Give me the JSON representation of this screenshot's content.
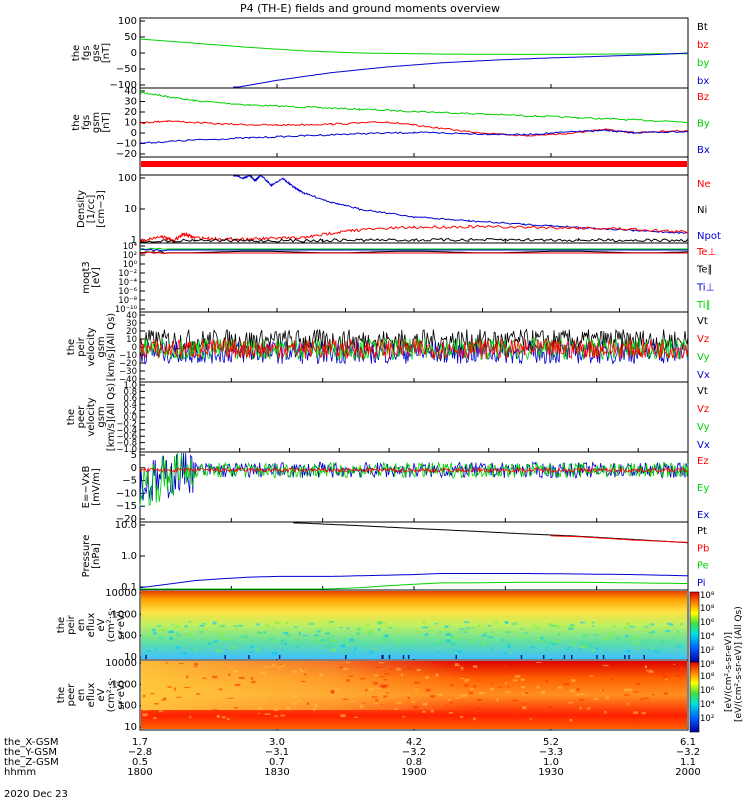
{
  "title": "P4 (TH-E) fields and ground moments overview",
  "colors": {
    "black": "#000000",
    "red": "#ff0000",
    "green": "#00d000",
    "blue": "#0000d0"
  },
  "chart_data": [
    {
      "type": "line",
      "id": "fgs_gse",
      "ylabel": [
        "the",
        "fgs",
        "gse",
        "[nT]"
      ],
      "yticks": [
        "100",
        "50",
        "0",
        "−50",
        "−100"
      ],
      "ylim": [
        -100,
        100
      ],
      "legend": [
        {
          "name": "Bt",
          "color": "black"
        },
        {
          "name": "bz",
          "color": "red"
        },
        {
          "name": "by",
          "color": "green"
        },
        {
          "name": "bx",
          "color": "blue"
        }
      ],
      "series": [
        {
          "name": "by",
          "color": "green",
          "x": [
            0,
            0.1,
            0.2,
            0.3,
            0.4,
            0.55,
            0.7,
            0.85,
            1
          ],
          "y": [
            40,
            28,
            16,
            6,
            0,
            -3,
            -4,
            -3,
            -2
          ]
        },
        {
          "name": "bx",
          "color": "blue",
          "x": [
            0.17,
            0.25,
            0.35,
            0.45,
            0.55,
            0.65,
            0.75,
            0.85,
            0.95,
            1
          ],
          "y": [
            -100,
            -78,
            -56,
            -40,
            -28,
            -20,
            -14,
            -9,
            -4,
            0
          ]
        }
      ]
    },
    {
      "type": "line",
      "id": "fgs_gsm",
      "ylabel": [
        "the",
        "fgs",
        "gsm",
        "[nT]"
      ],
      "yticks": [
        "40",
        "30",
        "20",
        "10",
        "0",
        "−10",
        "−20"
      ],
      "ylim": [
        -25,
        40
      ],
      "legend": [
        {
          "name": "Bz",
          "color": "red"
        },
        {
          "name": "By",
          "color": "green"
        },
        {
          "name": "Bx",
          "color": "blue"
        }
      ],
      "series": [
        {
          "name": "By",
          "color": "green",
          "x": [
            0,
            0.05,
            0.1,
            0.2,
            0.3,
            0.4,
            0.5,
            0.6,
            0.7,
            0.8,
            0.9,
            1
          ],
          "y": [
            36,
            32,
            28,
            24,
            22,
            20,
            18,
            16,
            14,
            12,
            10,
            8
          ]
        },
        {
          "name": "Bz",
          "color": "red",
          "x": [
            0,
            0.05,
            0.15,
            0.25,
            0.35,
            0.45,
            0.5,
            0.6,
            0.7,
            0.78,
            0.85,
            0.9,
            1
          ],
          "y": [
            7,
            9,
            6,
            5,
            6,
            8,
            5,
            -1,
            -5,
            -3,
            1,
            -2,
            0
          ]
        },
        {
          "name": "Bx",
          "color": "blue",
          "x": [
            0,
            0.1,
            0.2,
            0.3,
            0.4,
            0.5,
            0.6,
            0.7,
            0.8,
            0.85,
            0.9,
            1
          ],
          "y": [
            -12,
            -9,
            -7,
            -5,
            -3,
            -2,
            -3,
            -4,
            -1,
            0,
            -2,
            -1
          ]
        }
      ]
    },
    {
      "type": "log-line",
      "id": "density",
      "ylabel": [
        "Density",
        "[1/cc]",
        "[cm−3]"
      ],
      "yticks": [
        "100",
        "10",
        "1"
      ],
      "ylog": [
        0.5,
        200
      ],
      "legend": [
        {
          "name": "Ne",
          "color": "red"
        },
        {
          "name": "Ni",
          "color": "black"
        },
        {
          "name": "Npot",
          "color": "blue"
        }
      ],
      "series": [
        {
          "name": "Npot",
          "color": "blue",
          "x": [
            0.17,
            0.19,
            0.2,
            0.21,
            0.22,
            0.24,
            0.26,
            0.28,
            0.3,
            0.35,
            0.4,
            0.5,
            0.6,
            0.7,
            0.8,
            0.9,
            1
          ],
          "y": [
            200,
            150,
            200,
            120,
            200,
            80,
            150,
            70,
            40,
            18,
            10,
            5,
            3.5,
            2.6,
            2.0,
            1.5,
            1.2
          ]
        },
        {
          "name": "Ne",
          "color": "red",
          "x": [
            0,
            0.04,
            0.06,
            0.08,
            0.1,
            0.15,
            0.2,
            0.25,
            0.3,
            0.35,
            0.4,
            0.5,
            0.6,
            0.7,
            0.8,
            0.9,
            1
          ],
          "y": [
            0.6,
            0.9,
            0.6,
            1.1,
            0.8,
            0.7,
            0.7,
            0.75,
            0.8,
            1.2,
            1.6,
            2.0,
            2.1,
            2.0,
            1.9,
            1.7,
            1.3
          ]
        },
        {
          "name": "Ni",
          "color": "black",
          "x": [
            0,
            0.1,
            0.2,
            0.3,
            0.4,
            0.5,
            0.6,
            0.7,
            0.8,
            0.9,
            1
          ],
          "y": [
            0.55,
            0.65,
            0.6,
            0.62,
            0.65,
            0.65,
            0.66,
            0.66,
            0.65,
            0.64,
            0.62
          ]
        }
      ]
    },
    {
      "type": "log-line",
      "id": "temp",
      "ylabel": [
        "moqt3",
        "[eV]"
      ],
      "yticks": [
        "10⁴",
        "10²",
        "10⁰",
        "10⁻²",
        "10⁻⁴",
        "10⁻⁶",
        "10⁻⁸",
        "10⁻¹⁰"
      ],
      "legend": [
        {
          "name": "Te⊥",
          "color": "red"
        },
        {
          "name": "Te∥",
          "color": "black"
        },
        {
          "name": "Ti⊥",
          "color": "blue"
        },
        {
          "name": "Ti∥",
          "color": "green"
        }
      ],
      "series": []
    },
    {
      "type": "noise",
      "id": "peir_vel",
      "ylabel": [
        "the",
        "peir",
        "velocity",
        "gsm",
        "[km/s](All Qs)"
      ],
      "yticks": [
        "40",
        "30",
        "20",
        "10",
        "0",
        "−10",
        "−20",
        "−30",
        "−40"
      ],
      "ylim": [
        -40,
        45
      ],
      "legend": [
        {
          "name": "Vt",
          "color": "black"
        },
        {
          "name": "Vz",
          "color": "red"
        },
        {
          "name": "Vy",
          "color": "green"
        },
        {
          "name": "Vx",
          "color": "blue"
        }
      ],
      "series": []
    },
    {
      "type": "empty",
      "id": "peer_vel",
      "ylabel": [
        "the",
        "peer",
        "velocity",
        "gsm",
        "[km/s](All Qs)"
      ],
      "yticks": [
        "1.0",
        "0.8",
        "0.6",
        "0.4",
        "0.2",
        "0.0",
        "−0.2",
        "−0.4",
        "−0.6",
        "−0.8",
        "−1.0"
      ],
      "legend": [
        {
          "name": "Vt",
          "color": "black"
        },
        {
          "name": "Vz",
          "color": "red"
        },
        {
          "name": "Vy",
          "color": "green"
        },
        {
          "name": "Vx",
          "color": "blue"
        }
      ],
      "series": []
    },
    {
      "type": "noise",
      "id": "efield",
      "ylabel": [
        "E=−VxB",
        "[mV/m]"
      ],
      "yticks": [
        "5",
        "0",
        "−5",
        "−10",
        "−15",
        "−20"
      ],
      "ylim": [
        -20,
        7
      ],
      "legend": [
        {
          "name": "Ez",
          "color": "red"
        },
        {
          "name": "Ey",
          "color": "green"
        },
        {
          "name": "Ex",
          "color": "blue"
        }
      ],
      "series": []
    },
    {
      "type": "log-line",
      "id": "pressure",
      "ylabel": [
        "Pressure",
        "[nPa]"
      ],
      "yticks": [
        "10.0",
        "1.0",
        "0.1"
      ],
      "ylog": [
        0.04,
        30
      ],
      "legend": [
        {
          "name": "Pt",
          "color": "black"
        },
        {
          "name": "Pb",
          "color": "red"
        },
        {
          "name": "Pe",
          "color": "green"
        },
        {
          "name": "Pi",
          "color": "blue"
        }
      ],
      "series": [
        {
          "name": "Pt",
          "color": "black",
          "x": [
            0.28,
            0.4,
            0.5,
            0.6,
            0.7,
            0.8,
            0.9,
            1
          ],
          "y": [
            28,
            21,
            16,
            12.5,
            9.5,
            7.5,
            5.5,
            4.0
          ]
        },
        {
          "name": "Pb",
          "color": "red",
          "x": [
            0.75,
            0.8,
            0.9,
            1
          ],
          "y": [
            7.8,
            7.2,
            5.2,
            4.1
          ]
        },
        {
          "name": "Pi",
          "color": "blue",
          "x": [
            0,
            0.05,
            0.1,
            0.15,
            0.2,
            0.25,
            0.3,
            0.35,
            0.4,
            0.5,
            0.55,
            0.6,
            0.7,
            0.8,
            0.9,
            1
          ],
          "y": [
            0.05,
            0.07,
            0.1,
            0.12,
            0.14,
            0.15,
            0.15,
            0.15,
            0.16,
            0.18,
            0.2,
            0.2,
            0.2,
            0.19,
            0.18,
            0.16
          ]
        },
        {
          "name": "Pe",
          "color": "green",
          "x": [
            0,
            0.1,
            0.2,
            0.3,
            0.35,
            0.4,
            0.45,
            0.5,
            0.55,
            0.6,
            0.7,
            0.8,
            0.9,
            1
          ],
          "y": [
            0.04,
            0.04,
            0.04,
            0.04,
            0.045,
            0.05,
            0.06,
            0.07,
            0.08,
            0.08,
            0.085,
            0.085,
            0.08,
            0.075
          ]
        }
      ]
    },
    {
      "type": "heatmap",
      "id": "peir_eflux",
      "ylabel": [
        "the",
        "peir",
        "en",
        "eflux",
        "eV",
        "(cm²·s·",
        "sr·eV)"
      ],
      "yticks": [
        "10000",
        "1000",
        "100",
        "10"
      ]
    },
    {
      "type": "heatmap",
      "id": "peer_eflux",
      "ylabel": [
        "the",
        "peer",
        "en",
        "eflux",
        "eV",
        "(cm²·s·",
        "sr·eV)"
      ],
      "yticks": [
        "10000",
        "1000",
        "100",
        "10"
      ]
    }
  ],
  "colorbar": {
    "ticks": [
      "10⁸",
      "10⁸",
      "10⁶",
      "10⁴",
      "10²",
      "10⁸",
      "10⁸",
      "10⁶",
      "10⁴",
      "10²"
    ],
    "label": "[eV/(cm²-s-sr-eV)] (All Qs)",
    "label2": "[eV/(cm²-s-sr-eV)]"
  },
  "xaxis": {
    "rows": [
      {
        "label": "the_X-GSM",
        "values": [
          "1.7",
          "3.0",
          "4.2",
          "5.2",
          "6.1"
        ]
      },
      {
        "label": "the_Y-GSM",
        "values": [
          "−2.8",
          "−3.1",
          "−3.2",
          "−3.3",
          "−3.2"
        ]
      },
      {
        "label": "the_Z-GSM",
        "values": [
          "0.5",
          "0.7",
          "0.8",
          "1.0",
          "1.1"
        ]
      },
      {
        "label": "hhmm",
        "values": [
          "1800",
          "1830",
          "1900",
          "1930",
          "2000"
        ]
      }
    ],
    "date": "2020 Dec 23"
  }
}
